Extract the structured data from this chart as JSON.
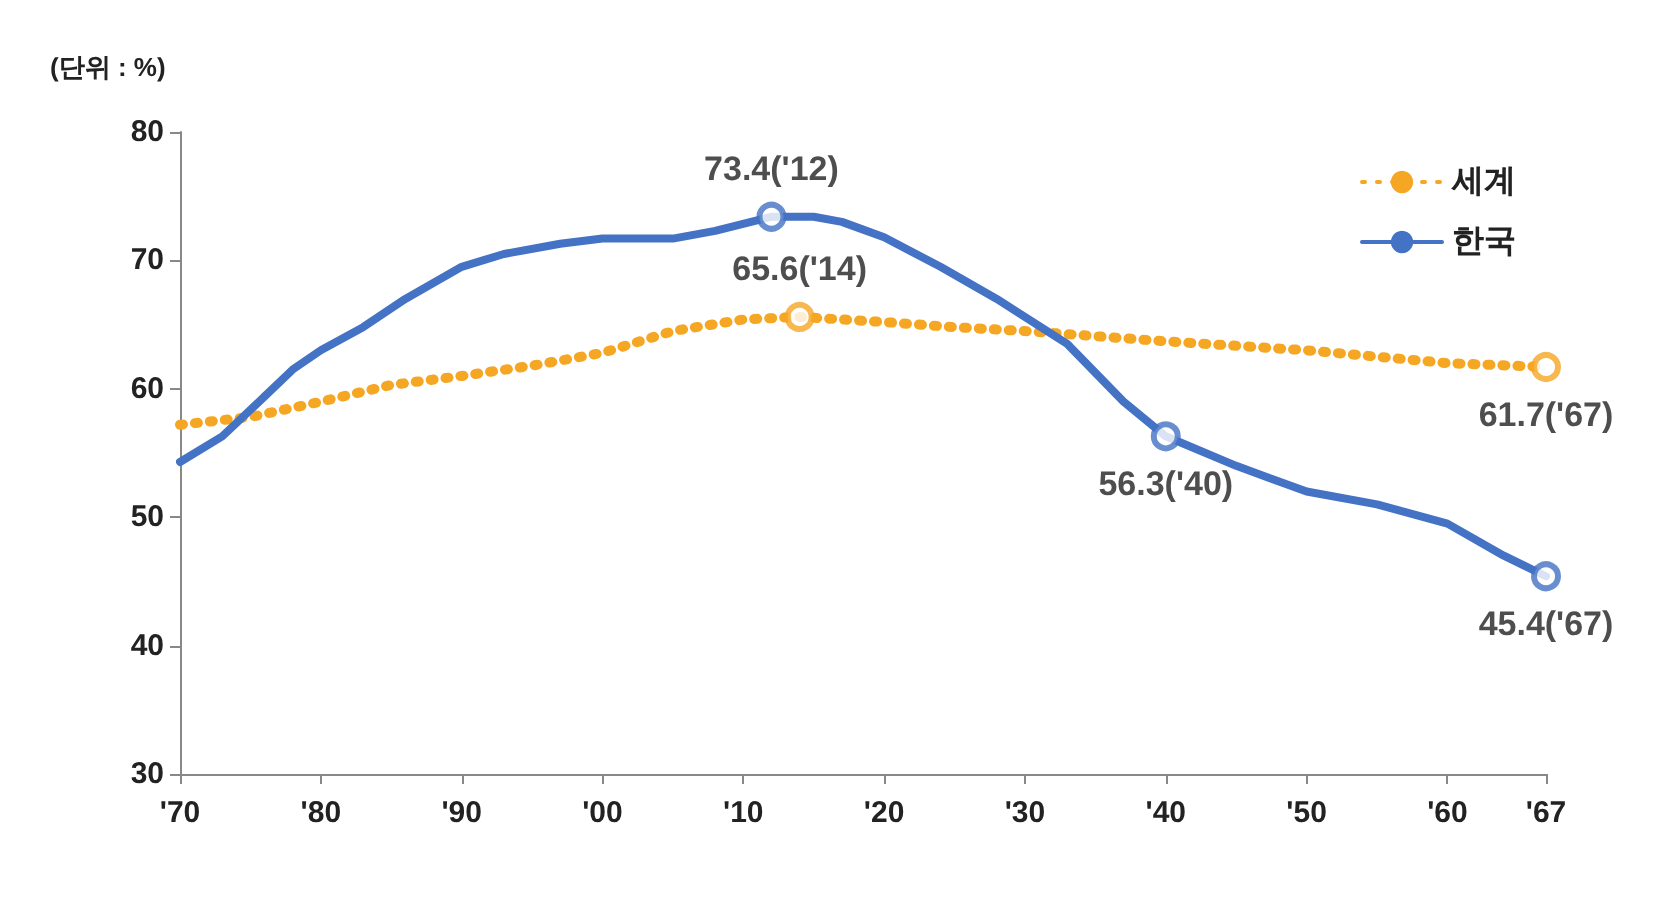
{
  "chart_data": {
    "type": "line",
    "ylabel": "(단위 : %)",
    "xlim": [
      1970,
      2067
    ],
    "xticks": [
      {
        "value": 1970,
        "label": "'70"
      },
      {
        "value": 1980,
        "label": "'80"
      },
      {
        "value": 1990,
        "label": "'90"
      },
      {
        "value": 2000,
        "label": "'00"
      },
      {
        "value": 2010,
        "label": "'10"
      },
      {
        "value": 2020,
        "label": "'20"
      },
      {
        "value": 2030,
        "label": "'30"
      },
      {
        "value": 2040,
        "label": "'40"
      },
      {
        "value": 2050,
        "label": "'50"
      },
      {
        "value": 2060,
        "label": "'60"
      },
      {
        "value": 2067,
        "label": "'67"
      }
    ],
    "ylim": [
      30,
      80
    ],
    "yticks": [
      30,
      40,
      50,
      60,
      70,
      80
    ],
    "grid": false,
    "legend": "top right",
    "marker": "none",
    "series": [
      {
        "name": "세계",
        "color": "#f5a623",
        "line_style": "dotted",
        "x": [
          1970,
          1975,
          1980,
          1985,
          1990,
          1995,
          2000,
          2005,
          2010,
          2014,
          2020,
          2025,
          2030,
          2040,
          2050,
          2060,
          2067
        ],
        "values": [
          57.2,
          57.8,
          59,
          60.3,
          61,
          61.8,
          62.8,
          64.5,
          65.4,
          65.6,
          65.2,
          64.8,
          64.5,
          63.7,
          63,
          62,
          61.7
        ]
      },
      {
        "name": "한국",
        "color": "#4472c4",
        "line_style": "solid",
        "x": [
          1970,
          1973,
          1976,
          1978,
          1980,
          1983,
          1986,
          1990,
          1993,
          1997,
          2000,
          2005,
          2008,
          2012,
          2015,
          2017,
          2020,
          2024,
          2028,
          2033,
          2037,
          2040,
          2045,
          2050,
          2055,
          2060,
          2064,
          2067
        ],
        "values": [
          54.3,
          56.3,
          59.4,
          61.5,
          63,
          64.8,
          67,
          69.5,
          70.5,
          71.3,
          71.7,
          71.7,
          72.3,
          73.4,
          73.4,
          73,
          71.8,
          69.5,
          67,
          63.5,
          59,
          56.3,
          54,
          52,
          51,
          49.5,
          47,
          45.4
        ]
      }
    ],
    "annotations": [
      {
        "text": "73.4('12)",
        "x": 2012,
        "y": 73.4
      },
      {
        "text": "65.6('14)",
        "x": 2014,
        "y": 65.6
      },
      {
        "text": "56.3('40)",
        "x": 2040,
        "y": 56.3
      },
      {
        "text": "61.7('67)",
        "x": 2067,
        "y": 61.7
      },
      {
        "text": "45.4('67)",
        "x": 2067,
        "y": 45.4
      }
    ]
  }
}
